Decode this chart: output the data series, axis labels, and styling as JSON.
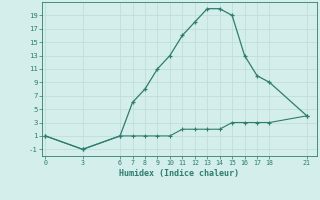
{
  "line1_x": [
    0,
    3,
    6,
    7,
    8,
    9,
    10,
    11,
    12,
    13,
    14,
    15,
    16,
    17,
    18,
    21
  ],
  "line1_y": [
    1,
    -1,
    1,
    6,
    8,
    11,
    13,
    16,
    18,
    20,
    20,
    19,
    13,
    10,
    9,
    4
  ],
  "line2_x": [
    0,
    3,
    6,
    7,
    8,
    9,
    10,
    11,
    12,
    13,
    14,
    15,
    16,
    17,
    18,
    21
  ],
  "line2_y": [
    1,
    -1,
    1,
    1,
    1,
    1,
    1,
    2,
    2,
    2,
    2,
    3,
    3,
    3,
    3,
    4
  ],
  "line_color": "#2e7d6e",
  "bg_color": "#d4eeeb",
  "grid_color": "#c0deda",
  "xlabel": "Humidex (Indice chaleur)",
  "xticks": [
    0,
    3,
    6,
    7,
    8,
    9,
    10,
    11,
    12,
    13,
    14,
    15,
    16,
    17,
    18,
    21
  ],
  "yticks": [
    -1,
    1,
    3,
    5,
    7,
    9,
    11,
    13,
    15,
    17,
    19
  ],
  "ylim": [
    -2.0,
    21.0
  ],
  "xlim": [
    -0.3,
    21.8
  ]
}
